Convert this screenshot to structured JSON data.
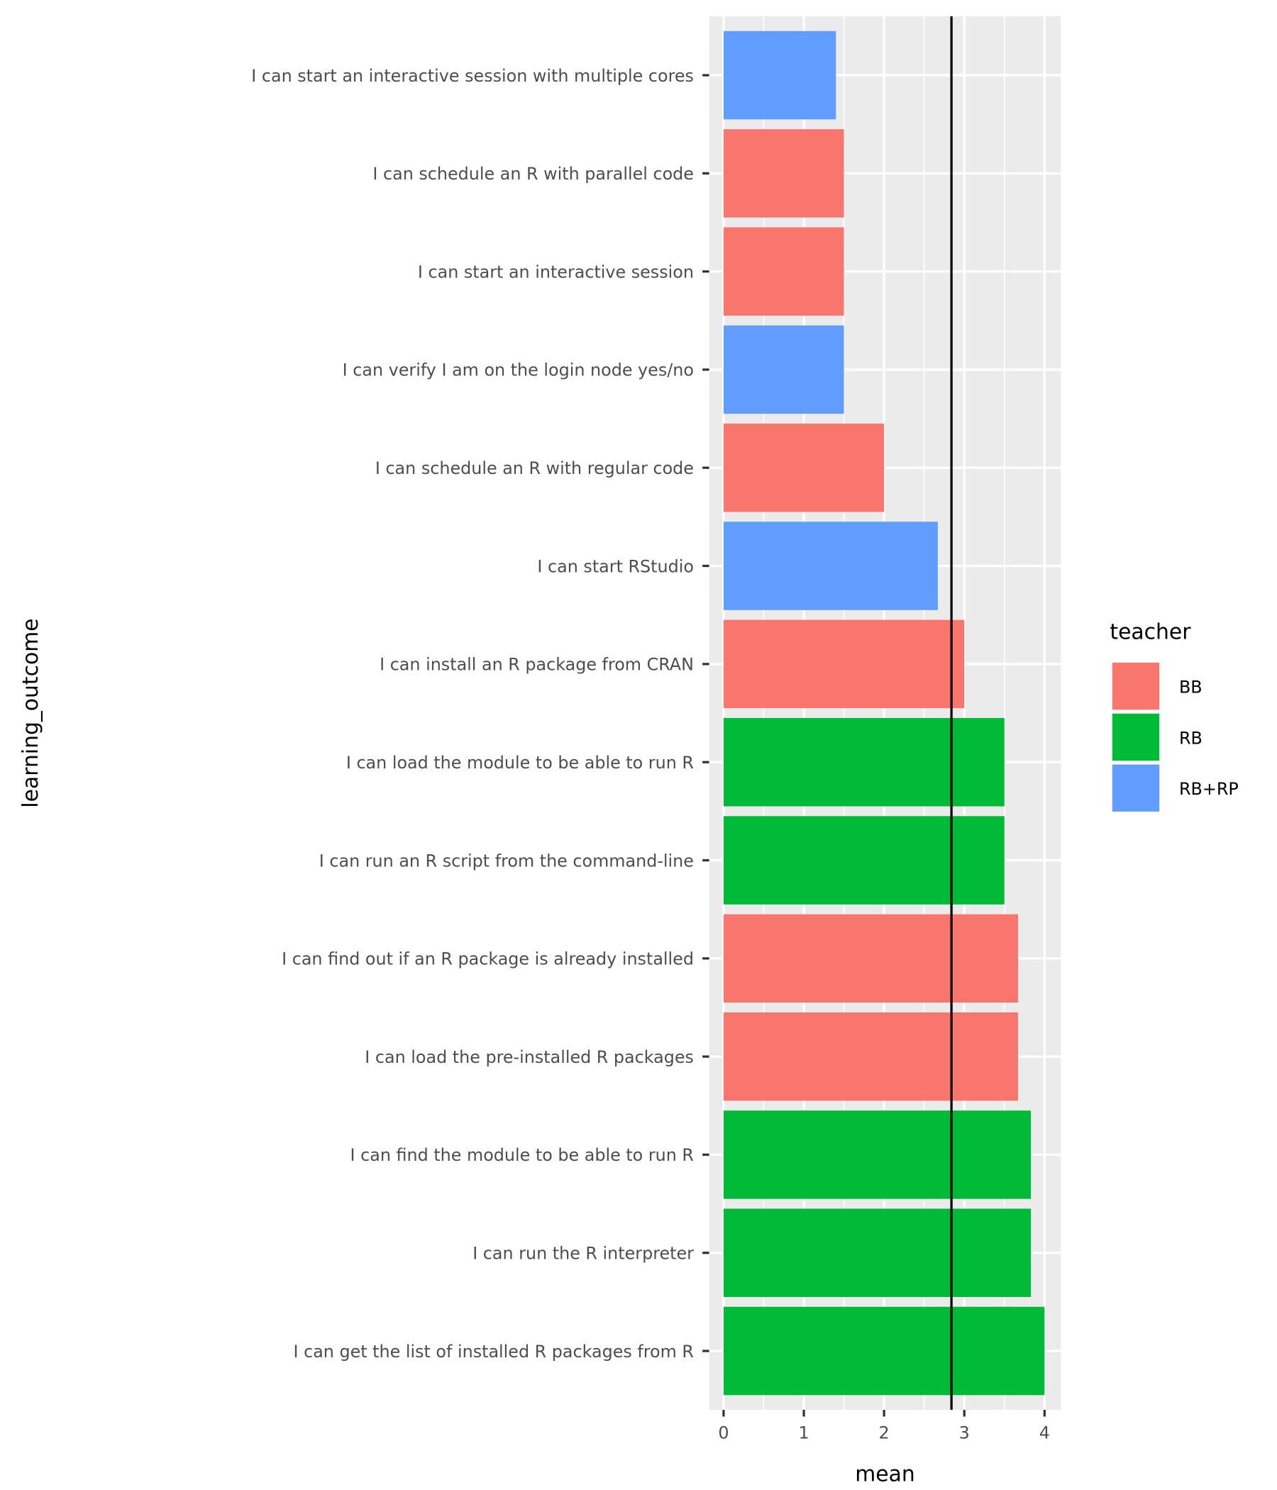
{
  "chart_data": {
    "type": "bar",
    "orientation": "horizontal",
    "xlabel": "mean",
    "ylabel": "learning_outcome",
    "xlim": [
      0,
      4
    ],
    "x_ticks": [
      "0",
      "1",
      "2",
      "3",
      "4"
    ],
    "grid": true,
    "reference_line": {
      "axis": "x",
      "value": 2.84,
      "color": "#000000"
    },
    "legend": {
      "title": "teacher",
      "placement": "right",
      "entries": [
        {
          "label": "BB",
          "color": "#F8766D"
        },
        {
          "label": "RB",
          "color": "#00BA38"
        },
        {
          "label": "RB+RP",
          "color": "#619CFF"
        }
      ]
    },
    "bars": [
      {
        "category": "I can start an interactive session with multiple cores",
        "value": 1.4,
        "teacher": "RB+RP"
      },
      {
        "category": "I can schedule an R with parallel code",
        "value": 1.5,
        "teacher": "BB"
      },
      {
        "category": "I can start an interactive session",
        "value": 1.5,
        "teacher": "BB"
      },
      {
        "category": "I can verify I am on the login node yes/no",
        "value": 1.5,
        "teacher": "RB+RP"
      },
      {
        "category": "I can schedule an R with regular code",
        "value": 2.0,
        "teacher": "BB"
      },
      {
        "category": "I can start RStudio",
        "value": 2.67,
        "teacher": "RB+RP"
      },
      {
        "category": "I can install an R package from CRAN",
        "value": 3.0,
        "teacher": "BB"
      },
      {
        "category": "I can load the module to be able to run R",
        "value": 3.5,
        "teacher": "RB"
      },
      {
        "category": "I can run an R script from the command-line",
        "value": 3.5,
        "teacher": "RB"
      },
      {
        "category": "I can find out if an R package is already installed",
        "value": 3.67,
        "teacher": "BB"
      },
      {
        "category": "I can load the pre-installed R packages",
        "value": 3.67,
        "teacher": "BB"
      },
      {
        "category": "I can find the module to be able to run R",
        "value": 3.83,
        "teacher": "RB"
      },
      {
        "category": "I can run the R interpreter",
        "value": 3.83,
        "teacher": "RB"
      },
      {
        "category": "I can get the list of installed R packages from R",
        "value": 4.0,
        "teacher": "RB"
      }
    ]
  }
}
